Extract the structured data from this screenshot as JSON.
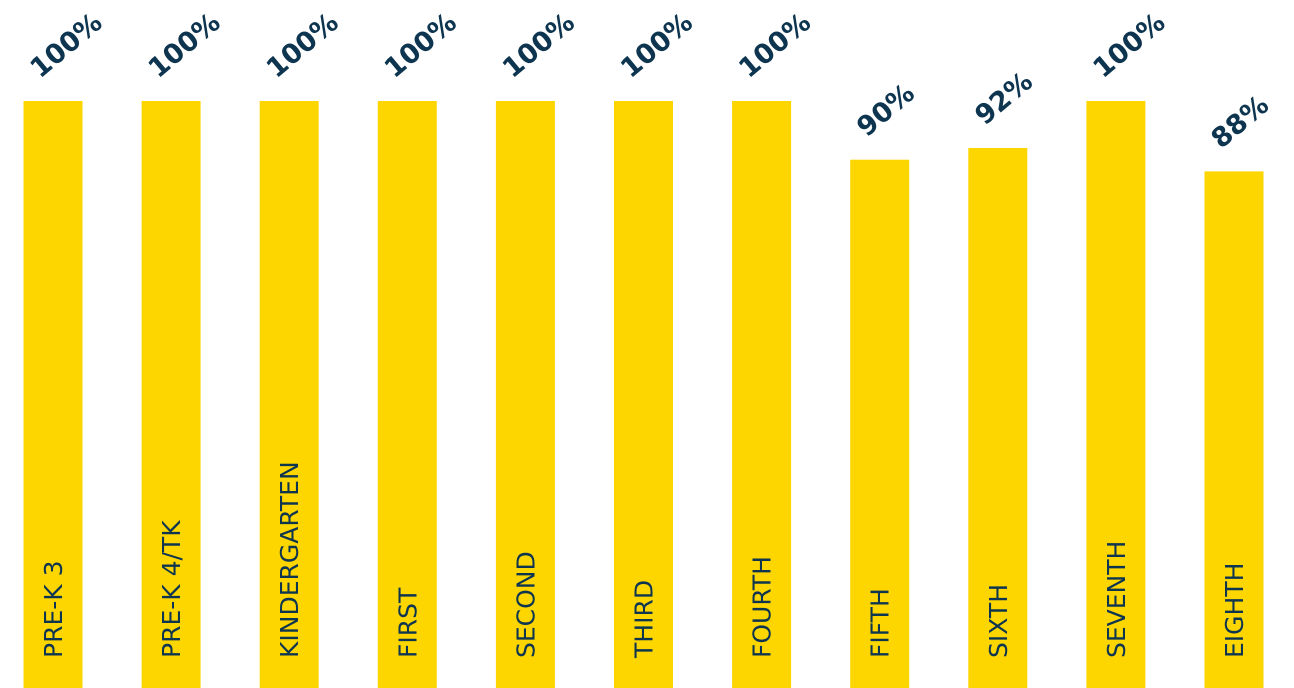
{
  "chart_data": {
    "type": "bar",
    "categories": [
      "PRE-K 3",
      "PRE-K 4/TK",
      "KINDERGARTEN",
      "FIRST",
      "SECOND",
      "THIRD",
      "FOURTH",
      "FIFTH",
      "SIXTH",
      "SEVENTH",
      "EIGHTH"
    ],
    "values": [
      100,
      100,
      100,
      100,
      100,
      100,
      100,
      90,
      92,
      100,
      88
    ],
    "value_labels": [
      "100%",
      "100%",
      "100%",
      "100%",
      "100%",
      "100%",
      "100%",
      "90%",
      "92%",
      "100%",
      "88%"
    ],
    "ylim": [
      0,
      100
    ],
    "grid": false,
    "legend": "none",
    "colors": {
      "bar": "#FDD600",
      "category_label": "#0E3550",
      "value_label": "#0E3550",
      "background": "#FFFFFF"
    }
  }
}
